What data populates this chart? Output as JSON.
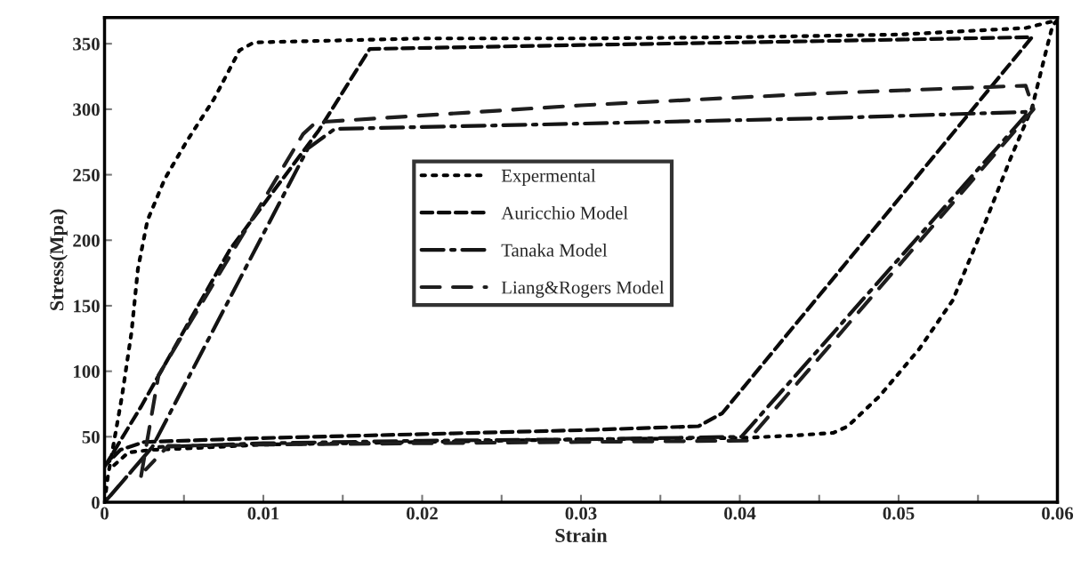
{
  "chart_data": {
    "type": "line",
    "xlabel": "Strain",
    "ylabel": "Stress(Mpa)",
    "xlim": [
      0,
      0.06
    ],
    "ylim": [
      0,
      370
    ],
    "xticks": [
      0,
      {
        "value": 0.005,
        "label": null
      },
      0.01,
      {
        "value": 0.015,
        "label": null
      },
      0.02,
      {
        "value": 0.025,
        "label": null
      },
      0.03,
      {
        "value": 0.035,
        "label": null
      },
      0.04,
      {
        "value": 0.045,
        "label": null
      },
      0.05,
      {
        "value": 0.055,
        "label": null
      },
      0.06
    ],
    "yticks": [
      0,
      50,
      100,
      150,
      200,
      250,
      300,
      350
    ],
    "grid": false,
    "legend": "center",
    "marker": "none",
    "series": [
      {
        "name": "Expermental",
        "color": "#000000",
        "line_style": "dotted",
        "x": [
          0,
          0.0002,
          0.0011,
          0.0017,
          0.0021,
          0.0027,
          0.0038,
          0.0052,
          0.0069,
          0.0085,
          0.0094,
          0.02,
          0.03,
          0.04,
          0.05,
          0.058,
          0.06,
          0.0597,
          0.0594,
          0.0584,
          0.0571,
          0.0555,
          0.0534,
          0.0513,
          0.0488,
          0.0468,
          0.0459,
          0.0435,
          0.04,
          0.03,
          0.02,
          0.01,
          0.005,
          0.003,
          0.0015,
          0.0003
        ],
        "values": [
          0,
          19,
          81,
          130,
          178,
          215,
          247,
          276,
          308,
          345,
          351,
          354,
          354,
          355,
          357,
          362,
          368,
          364,
          350,
          301,
          264,
          215,
          154,
          117,
          81,
          58,
          53,
          51,
          49,
          48,
          46,
          44,
          41,
          40,
          38,
          25
        ]
      },
      {
        "name": "Auricchio Model",
        "color": "#0a0a0a",
        "line_style": "dashed",
        "x": [
          0,
          0.0023,
          0.0079,
          0.0135,
          0.0167,
          0.03,
          0.045,
          0.0584,
          0.0389,
          0.0374,
          0.03,
          0.02,
          0.01,
          0.0025,
          0.001,
          0.0002
        ],
        "values": [
          27,
          73,
          193,
          284,
          346,
          349,
          352,
          355,
          68,
          58,
          55,
          52,
          49,
          46,
          40,
          30
        ]
      },
      {
        "name": "Tanaka Model",
        "color": "#141414",
        "line_style": "dashdot",
        "x": [
          0,
          0.003,
          0.0128,
          0.0145,
          0.03,
          0.045,
          0.0582,
          0.0401,
          0.03,
          0.02,
          0.01,
          0.003,
          0.0003
        ],
        "values": [
          0,
          42,
          270,
          285,
          289,
          293,
          298,
          50,
          48,
          47,
          45,
          42,
          4
        ]
      },
      {
        "name": "Liang&Rogers Model",
        "color": "#1e1e1e",
        "line_style": "longdashed",
        "x": [
          0.0023,
          0.0034,
          0.0125,
          0.0133,
          0.03,
          0.045,
          0.058,
          0.0585,
          0.0405,
          0.03,
          0.02,
          0.01,
          0.004,
          0.0026
        ],
        "values": [
          20,
          97,
          281,
          290,
          303,
          312,
          318,
          300,
          47,
          46,
          45,
          44,
          43,
          25
        ]
      }
    ]
  }
}
